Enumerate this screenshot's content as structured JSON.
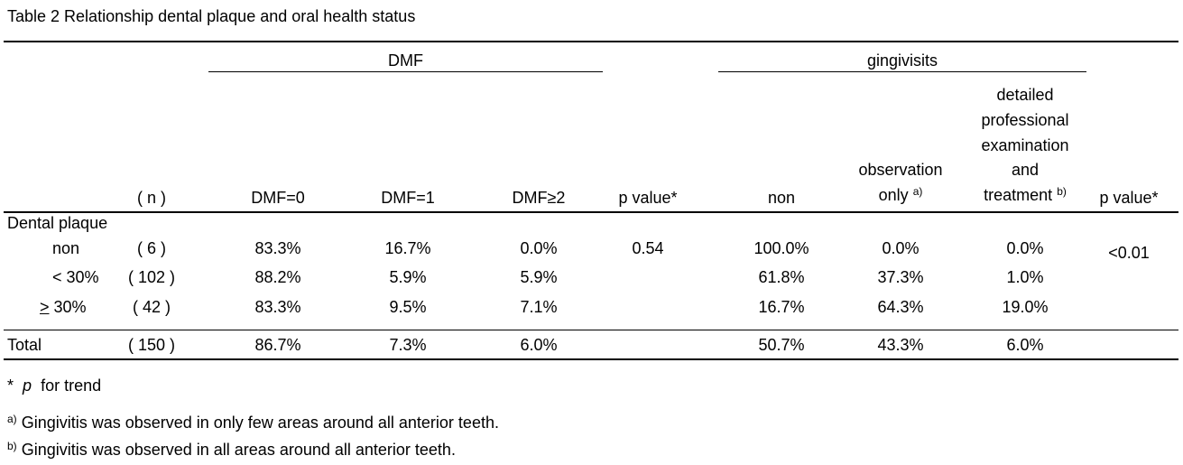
{
  "caption": "Table 2  Relationship dental plaque and oral health status",
  "groups": {
    "dmf": "DMF",
    "gingivitis": "gingivisits"
  },
  "headers": {
    "n": "( n )",
    "dmf0": "DMF=0",
    "dmf1": "DMF=1",
    "dmf2": "DMF≥2",
    "pvalue_dmf": "p value*",
    "non": "non",
    "observation_line1": "observation",
    "observation_line2": "only",
    "observation_note": "a)",
    "detailed_line1": "detailed",
    "detailed_line2": "professional",
    "detailed_line3": "examination",
    "detailed_line4": "and",
    "detailed_line5": "treatment",
    "detailed_note": "b)",
    "pvalue_ging": "p value*"
  },
  "section_label": "Dental plaque",
  "rows": [
    {
      "label_prefix": "",
      "label": "non",
      "n": "( 6 )",
      "dmf0": "83.3%",
      "dmf1": "16.7%",
      "dmf2": "0.0%",
      "p_dmf": "0.54",
      "non": "100.0%",
      "obs": "0.0%",
      "det": "0.0%",
      "p_ging": "<0.01"
    },
    {
      "label_prefix": "",
      "label": "< 30%",
      "n": "( 102 )",
      "dmf0": "88.2%",
      "dmf1": "5.9%",
      "dmf2": "5.9%",
      "p_dmf": "",
      "non": "61.8%",
      "obs": "37.3%",
      "det": "1.0%",
      "p_ging": ""
    },
    {
      "label_prefix": ">",
      "label": " 30%",
      "n": "( 42 )",
      "dmf0": "83.3%",
      "dmf1": "9.5%",
      "dmf2": "7.1%",
      "p_dmf": "",
      "non": "16.7%",
      "obs": "64.3%",
      "det": "19.0%",
      "p_ging": ""
    }
  ],
  "total": {
    "label": "Total",
    "n": "( 150 )",
    "dmf0": "86.7%",
    "dmf1": "7.3%",
    "dmf2": "6.0%",
    "non": "50.7%",
    "obs": "43.3%",
    "det": "6.0%"
  },
  "footnotes": {
    "trend_star": "*",
    "trend_p": "p",
    "trend_text": "for trend",
    "a_mark": "a)",
    "a_text": "Gingivitis was observed in only few areas around all anterior teeth.",
    "b_mark": "b)",
    "b_text": "Gingivitis was observed in all areas around all anterior teeth."
  }
}
